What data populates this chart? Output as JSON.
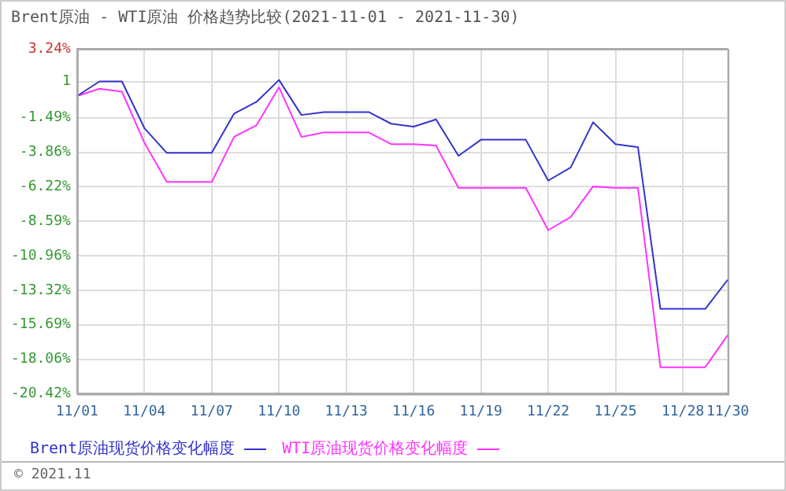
{
  "chart_data": {
    "type": "line",
    "title": "Brent原油 - WTI原油 价格趋势比较(2021-11-01 - 2021-11-30)",
    "categories": [
      "11/01",
      null,
      null,
      "11/04",
      null,
      null,
      "11/07",
      null,
      null,
      "11/10",
      null,
      null,
      "11/13",
      null,
      null,
      "11/16",
      null,
      null,
      "11/19",
      null,
      null,
      "11/22",
      null,
      null,
      "11/25",
      null,
      null,
      "11/28",
      null,
      "11/30"
    ],
    "series": [
      {
        "name": "Brent原油现货价格变化幅度",
        "color": "#3333cc",
        "values": [
          0,
          1.0,
          1.0,
          -2.2,
          -3.9,
          -3.9,
          -3.9,
          -1.2,
          -0.4,
          1.1,
          -1.3,
          -1.1,
          -1.1,
          -1.1,
          -1.9,
          -2.1,
          -1.6,
          -4.1,
          -3.0,
          -3.0,
          -3.0,
          -5.8,
          -4.9,
          -1.8,
          -3.3,
          -3.5,
          -14.6,
          -14.6,
          -14.6,
          -12.6
        ]
      },
      {
        "name": "WTI原油现货价格变化幅度",
        "color": "#ff33ff",
        "values": [
          0,
          0.5,
          0.3,
          -3.2,
          -5.9,
          -5.9,
          -5.9,
          -2.8,
          -2.0,
          0.6,
          -2.8,
          -2.5,
          -2.5,
          -2.5,
          -3.3,
          -3.3,
          -3.4,
          -6.3,
          -6.3,
          -6.3,
          -6.3,
          -9.2,
          -8.3,
          -6.2,
          -6.3,
          -6.3,
          -18.6,
          -18.6,
          -18.6,
          -16.4
        ]
      }
    ],
    "ylim": [
      -20.42,
      3.24
    ],
    "yticks": [
      {
        "value": 3.24,
        "label": "3.24%"
      },
      {
        "value": 1,
        "label": "1"
      },
      {
        "value": -1.49,
        "label": "-1.49%"
      },
      {
        "value": -3.86,
        "label": "-3.86%"
      },
      {
        "value": -6.22,
        "label": "-6.22%"
      },
      {
        "value": -8.59,
        "label": "-8.59%"
      },
      {
        "value": -10.96,
        "label": "-10.96%"
      },
      {
        "value": -13.32,
        "label": "-13.32%"
      },
      {
        "value": -15.69,
        "label": "-15.69%"
      },
      {
        "value": -18.06,
        "label": "-18.06%"
      },
      {
        "value": -20.42,
        "label": "-20.42%"
      }
    ],
    "grid": true,
    "legend": "bottom",
    "marker": "none",
    "line_style": "solid",
    "annotations": [
      "© 2021.11"
    ]
  }
}
